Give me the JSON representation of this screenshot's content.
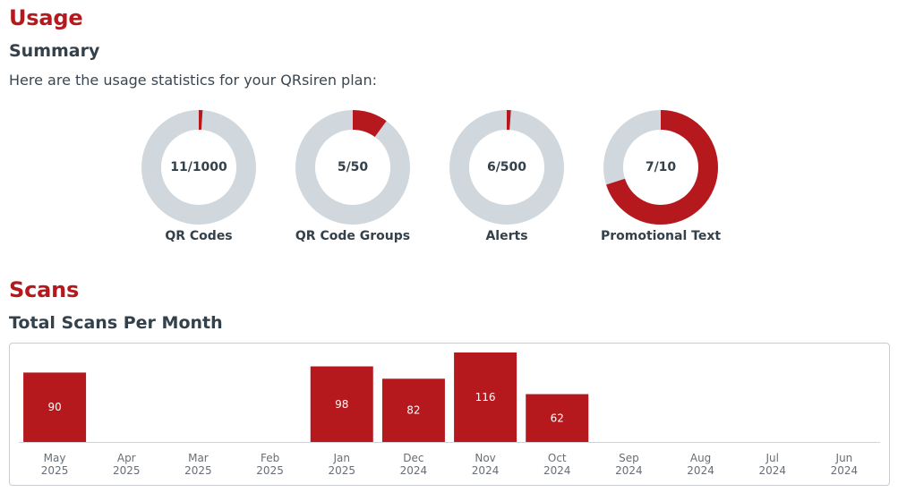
{
  "usage": {
    "heading": "Usage",
    "summary_heading": "Summary",
    "intro": "Here are the usage statistics for your QRsiren plan:",
    "colors": {
      "used": "#b5191d",
      "remaining": "#d0d8dd"
    },
    "meters": [
      {
        "label": "QR Codes",
        "used": 11,
        "limit": 1000,
        "display": "11/1000"
      },
      {
        "label": "QR Code Groups",
        "used": 5,
        "limit": 50,
        "display": "5/50"
      },
      {
        "label": "Alerts",
        "used": 6,
        "limit": 500,
        "display": "6/500"
      },
      {
        "label": "Promotional Text",
        "used": 7,
        "limit": 10,
        "display": "7/10"
      }
    ]
  },
  "scans": {
    "heading": "Scans",
    "chart_heading": "Total Scans Per Month"
  },
  "chart_data": {
    "type": "bar",
    "title": "Total Scans Per Month",
    "categories": [
      "May 2025",
      "Apr 2025",
      "Mar 2025",
      "Feb 2025",
      "Jan 2025",
      "Dec 2024",
      "Nov 2024",
      "Oct 2024",
      "Sep 2024",
      "Aug 2024",
      "Jul 2024",
      "Jun 2024"
    ],
    "category_lines": [
      [
        "May",
        "2025"
      ],
      [
        "Apr",
        "2025"
      ],
      [
        "Mar",
        "2025"
      ],
      [
        "Feb",
        "2025"
      ],
      [
        "Jan",
        "2025"
      ],
      [
        "Dec",
        "2024"
      ],
      [
        "Nov",
        "2024"
      ],
      [
        "Oct",
        "2024"
      ],
      [
        "Sep",
        "2024"
      ],
      [
        "Aug",
        "2024"
      ],
      [
        "Jul",
        "2024"
      ],
      [
        "Jun",
        "2024"
      ]
    ],
    "values": [
      90,
      null,
      null,
      null,
      98,
      82,
      116,
      62,
      null,
      null,
      null,
      null
    ],
    "data_labels": true,
    "ylim": [
      0,
      116
    ],
    "grid": false,
    "bar_color": "#b5191d",
    "label_color": "#ffffff"
  }
}
